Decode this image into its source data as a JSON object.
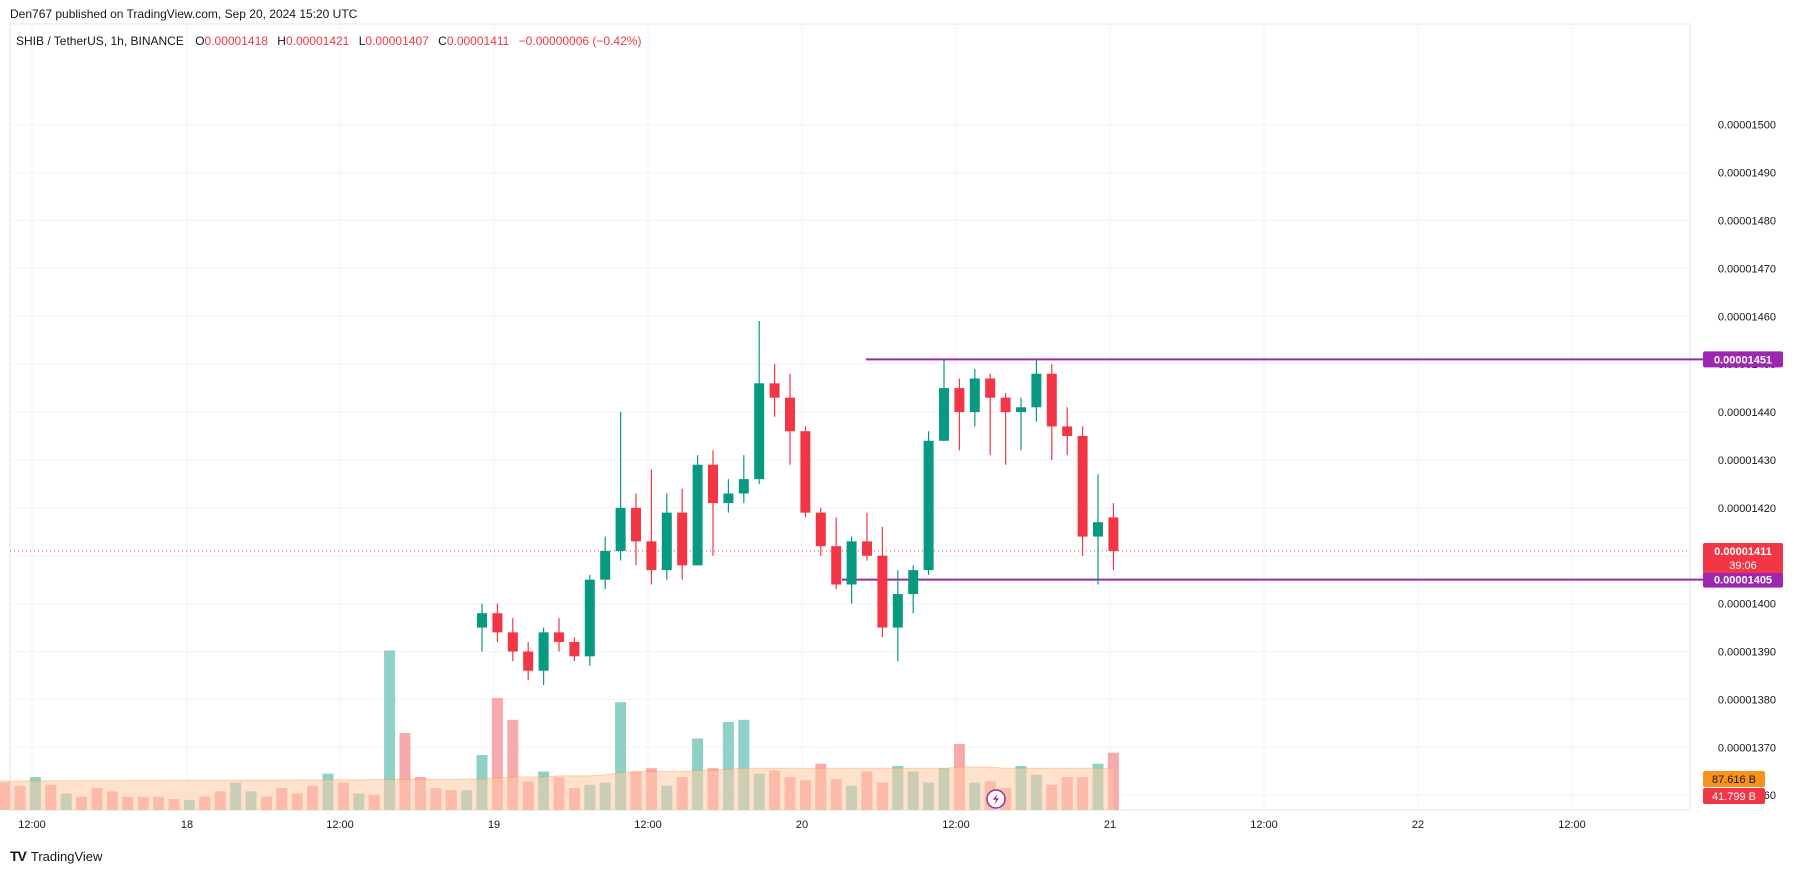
{
  "header": {
    "published": "Den767 published on TradingView.com, Sep 20, 2024 15:20 UTC"
  },
  "legend": {
    "symbol": "SHIB / TetherUS, 1h, BINANCE",
    "open_label": "O",
    "open": "0.00001418",
    "high_label": "H",
    "high": "0.00001421",
    "low_label": "L",
    "low": "0.00001407",
    "close_label": "C",
    "close": "0.00001411",
    "change": "−0.00000006 (−0.42%)"
  },
  "footer": {
    "brand": "TradingView"
  },
  "colors": {
    "up": "#089981",
    "down": "#f23645",
    "up_vol": "#8fd0c7",
    "down_vol": "#f7a9ab",
    "level": "#9c27b0",
    "grid": "#f0f3fa",
    "vol_ma_fill": "#ffcba6",
    "vol_ma_line": "#f7931a"
  },
  "chart_data": {
    "type": "candlestick",
    "ylim": [
      1.359e-05,
      1.511e-05
    ],
    "y_ticks": [
      "0.00001500",
      "0.00001490",
      "0.00001480",
      "0.00001470",
      "0.00001460",
      "0.00001450",
      "0.00001440",
      "0.00001430",
      "0.00001420",
      "0.00001410",
      "0.00001400",
      "0.00001390",
      "0.00001380",
      "0.00001370",
      "0.00001360"
    ],
    "x_ticks": [
      "12:00",
      "18",
      "12:00",
      "19",
      "12:00",
      "20",
      "12:00",
      "21",
      "12:00",
      "22",
      "12:00"
    ],
    "levels": [
      {
        "price": 1.451e-05,
        "label": "0.00001451"
      },
      {
        "price": 1.405e-05,
        "label": "0.00001405"
      }
    ],
    "current_price": {
      "value": 1.411e-05,
      "label": "0.00001411",
      "countdown": "39:06"
    },
    "volume_labels": {
      "ma": "87.616 B",
      "current": "41.799 B"
    },
    "candles": [
      [
        1.395e-05,
        1.4e-05,
        1.39e-05,
        1.398e-05
      ],
      [
        1.398e-05,
        1.4e-05,
        1.392e-05,
        1.394e-05
      ],
      [
        1.394e-05,
        1.397e-05,
        1.388e-05,
        1.39e-05
      ],
      [
        1.39e-05,
        1.392e-05,
        1.384e-05,
        1.386e-05
      ],
      [
        1.386e-05,
        1.395e-05,
        1.383e-05,
        1.394e-05
      ],
      [
        1.394e-05,
        1.397e-05,
        1.39e-05,
        1.392e-05
      ],
      [
        1.392e-05,
        1.393e-05,
        1.388e-05,
        1.389e-05
      ],
      [
        1.389e-05,
        1.406e-05,
        1.387e-05,
        1.405e-05
      ],
      [
        1.405e-05,
        1.414e-05,
        1.403e-05,
        1.411e-05
      ],
      [
        1.411e-05,
        1.44e-05,
        1.409e-05,
        1.42e-05
      ],
      [
        1.42e-05,
        1.423e-05,
        1.408e-05,
        1.413e-05
      ],
      [
        1.413e-05,
        1.428e-05,
        1.404e-05,
        1.407e-05
      ],
      [
        1.407e-05,
        1.423e-05,
        1.405e-05,
        1.419e-05
      ],
      [
        1.419e-05,
        1.424e-05,
        1.405e-05,
        1.408e-05
      ],
      [
        1.408e-05,
        1.431e-05,
        1.408e-05,
        1.429e-05
      ],
      [
        1.429e-05,
        1.432e-05,
        1.41e-05,
        1.421e-05
      ],
      [
        1.421e-05,
        1.426e-05,
        1.419e-05,
        1.423e-05
      ],
      [
        1.423e-05,
        1.431e-05,
        1.421e-05,
        1.426e-05
      ],
      [
        1.426e-05,
        1.459e-05,
        1.425e-05,
        1.446e-05
      ],
      [
        1.446e-05,
        1.45e-05,
        1.439e-05,
        1.443e-05
      ],
      [
        1.443e-05,
        1.448e-05,
        1.429e-05,
        1.436e-05
      ],
      [
        1.436e-05,
        1.437e-05,
        1.418e-05,
        1.419e-05
      ],
      [
        1.419e-05,
        1.42e-05,
        1.41e-05,
        1.412e-05
      ],
      [
        1.412e-05,
        1.418e-05,
        1.403e-05,
        1.404e-05
      ],
      [
        1.404e-05,
        1.414e-05,
        1.4e-05,
        1.413e-05
      ],
      [
        1.413e-05,
        1.419e-05,
        1.409e-05,
        1.41e-05
      ],
      [
        1.41e-05,
        1.416e-05,
        1.393e-05,
        1.395e-05
      ],
      [
        1.395e-05,
        1.407e-05,
        1.388e-05,
        1.402e-05
      ],
      [
        1.402e-05,
        1.408e-05,
        1.398e-05,
        1.407e-05
      ],
      [
        1.407e-05,
        1.436e-05,
        1.406e-05,
        1.434e-05
      ],
      [
        1.434e-05,
        1.451e-05,
        1.434e-05,
        1.445e-05
      ],
      [
        1.445e-05,
        1.447e-05,
        1.432e-05,
        1.44e-05
      ],
      [
        1.44e-05,
        1.449e-05,
        1.437e-05,
        1.447e-05
      ],
      [
        1.447e-05,
        1.448e-05,
        1.431e-05,
        1.443e-05
      ],
      [
        1.443e-05,
        1.444e-05,
        1.429e-05,
        1.44e-05
      ],
      [
        1.44e-05,
        1.443e-05,
        1.432e-05,
        1.441e-05
      ],
      [
        1.441e-05,
        1.451e-05,
        1.438e-05,
        1.448e-05
      ],
      [
        1.448e-05,
        1.45e-05,
        1.43e-05,
        1.437e-05
      ],
      [
        1.437e-05,
        1.441e-05,
        1.431e-05,
        1.435e-05
      ],
      [
        1.435e-05,
        1.437e-05,
        1.41e-05,
        1.414e-05
      ],
      [
        1.414e-05,
        1.427e-05,
        1.404e-05,
        1.417e-05
      ],
      [
        1.418e-05,
        1.421e-05,
        1.407e-05,
        1.411e-05
      ]
    ],
    "volumes_history_count": 30,
    "volumes_pre": [
      0.18,
      0.3,
      0.52,
      0.53,
      0.42,
      0.25,
      0.22,
      0.3,
      0.23,
      0.15,
      0.12,
      0.2,
      0.17,
      0.12,
      0.12,
      0.12,
      0.1,
      0.09,
      0.12,
      0.17,
      0.25,
      0.17,
      0.12,
      0.2,
      0.15,
      0.22,
      0.33,
      0.25,
      0.15,
      0.14,
      1.45,
      0.7,
      0.3,
      0.2,
      0.18,
      0.18
    ],
    "volumes_pre_dir": [
      1,
      1,
      0,
      0,
      1,
      1,
      1,
      0,
      1,
      0,
      1,
      1,
      1,
      1,
      1,
      1,
      1,
      0,
      1,
      1,
      0,
      0,
      1,
      1,
      1,
      1,
      0,
      1,
      0,
      1,
      0,
      1,
      1,
      1,
      1,
      0
    ],
    "volumes": [
      0.5,
      1.02,
      0.82,
      0.26,
      0.35,
      0.3,
      0.2,
      0.23,
      0.25,
      0.98,
      0.35,
      0.38,
      0.22,
      0.3,
      0.65,
      0.38,
      0.8,
      0.82,
      0.33,
      0.36,
      0.3,
      0.27,
      0.42,
      0.28,
      0.22,
      0.35,
      0.25,
      0.4,
      0.35,
      0.25,
      0.38,
      0.6,
      0.25,
      0.26,
      0.2,
      0.4,
      0.32,
      0.23,
      0.3,
      0.3,
      0.42,
      0.52
    ],
    "volume_ma": [
      0.28,
      0.29,
      0.3,
      0.3,
      0.3,
      0.31,
      0.31,
      0.31,
      0.32,
      0.34,
      0.35,
      0.35,
      0.35,
      0.35,
      0.36,
      0.36,
      0.37,
      0.38,
      0.38,
      0.38,
      0.38,
      0.38,
      0.38,
      0.38,
      0.38,
      0.38,
      0.38,
      0.38,
      0.38,
      0.38,
      0.38,
      0.39,
      0.39,
      0.39,
      0.38,
      0.38,
      0.38,
      0.38,
      0.38,
      0.38,
      0.38,
      0.38
    ]
  }
}
